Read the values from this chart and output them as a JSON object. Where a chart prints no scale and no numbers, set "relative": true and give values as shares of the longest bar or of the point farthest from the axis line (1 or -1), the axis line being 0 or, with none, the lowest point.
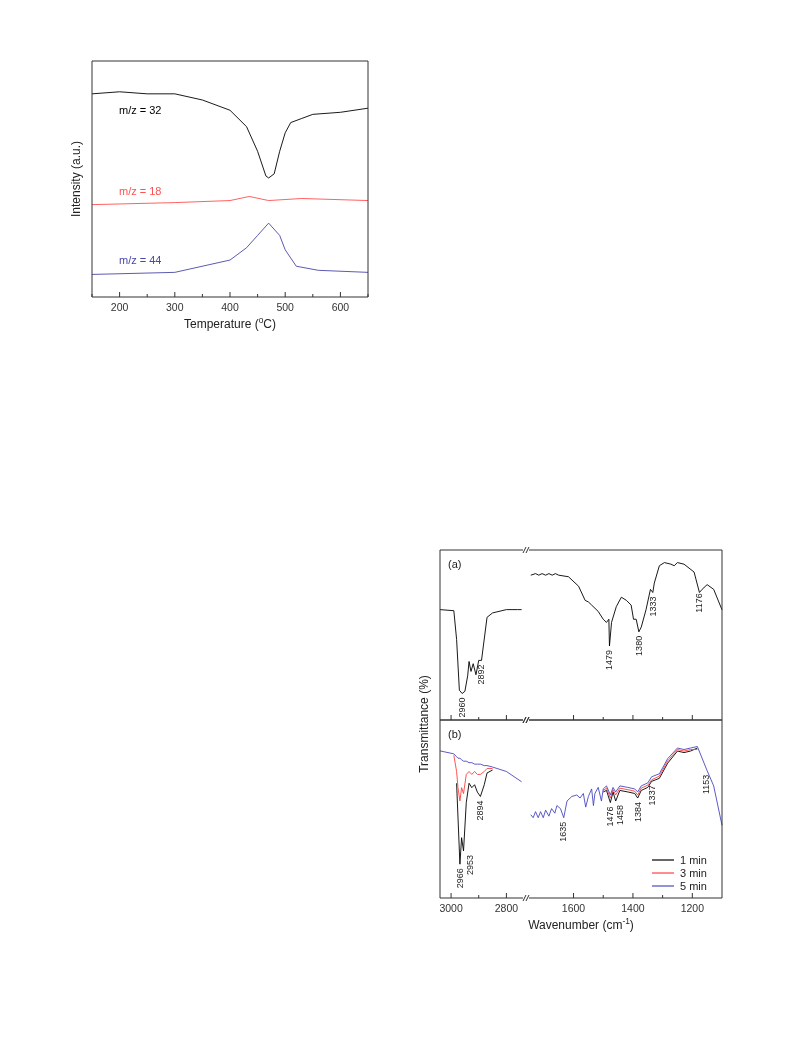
{
  "chart_data": [
    {
      "type": "line",
      "xlabel": "Temperature ($^{o}$C)",
      "ylabel": "Intensity (a.u.)",
      "relative": true,
      "xlim": [
        150,
        650
      ],
      "xticks": [
        {
          "value": 150,
          "label": null
        },
        200,
        {
          "value": 250,
          "label": null
        },
        300,
        {
          "value": 350,
          "label": null
        },
        400,
        {
          "value": 450,
          "label": null
        },
        500,
        {
          "value": 550,
          "label": null
        },
        600,
        {
          "value": 650,
          "label": null
        }
      ],
      "x": [
        150,
        200,
        250,
        300,
        350,
        400,
        430,
        450,
        465,
        470,
        480,
        490,
        500,
        510,
        530,
        550,
        600,
        650
      ],
      "series": [
        {
          "name": "m/z = 32",
          "color": "#000000",
          "values": [
            0.99,
            1.0,
            0.99,
            0.99,
            0.96,
            0.91,
            0.83,
            0.71,
            0.59,
            0.58,
            0.6,
            0.71,
            0.8,
            0.85,
            0.87,
            0.89,
            0.9,
            0.92
          ]
        },
        {
          "name": "m/z = 18",
          "color": "#ff5050",
          "x": [
            150,
            300,
            400,
            435,
            470,
            530,
            650
          ],
          "values": [
            0.45,
            0.46,
            0.47,
            0.49,
            0.47,
            0.48,
            0.47
          ]
        },
        {
          "name": "m/z = 44",
          "color": "#4848a8",
          "x": [
            150,
            300,
            400,
            430,
            450,
            470,
            490,
            500,
            520,
            560,
            650
          ],
          "values": [
            0.11,
            0.12,
            0.18,
            0.24,
            0.3,
            0.36,
            0.3,
            0.23,
            0.15,
            0.13,
            0.12
          ]
        }
      ]
    },
    {
      "type": "line",
      "relative": true,
      "tick_labels": false,
      "ylabel": "Transmittance (%)",
      "annotations": [
        "(a)",
        {
          "text": "2960",
          "x": 2960,
          "y": 0.24
        },
        {
          "text": "2892",
          "x": 2892,
          "y": 0.54
        }
      ],
      "xlim": [
        3040,
        2740
      ],
      "xticks": [
        3000,
        {
          "value": 2900,
          "label": null
        },
        2800
      ],
      "x": [
        3040,
        2990,
        2980,
        2970,
        2960,
        2950,
        2940,
        2935,
        2928,
        2920,
        2910,
        2900,
        2890,
        2870,
        2850,
        2800,
        2760,
        2745
      ],
      "series": [
        {
          "color": "#000000",
          "values": [
            1.0,
            0.99,
            0.73,
            0.27,
            0.24,
            0.26,
            0.4,
            0.53,
            0.44,
            0.51,
            0.41,
            0.54,
            0.54,
            0.93,
            0.97,
            1.0,
            1.0,
            1.0
          ]
        }
      ]
    },
    {
      "type": "line",
      "relative": true,
      "tick_labels": false,
      "annotations": [
        {
          "text": "1479",
          "x": 1479,
          "y": 0.47
        },
        {
          "text": "1380",
          "x": 1380,
          "y": 0.56
        },
        {
          "text": "1333",
          "x": 1333,
          "y": 0.81
        },
        {
          "text": "1176",
          "x": 1176,
          "y": 0.83
        }
      ],
      "xlim": [
        1750,
        1100
      ],
      "xticks": [
        1600,
        {
          "value": 1500,
          "label": null
        },
        1400,
        {
          "value": 1300,
          "label": null
        },
        1200
      ],
      "x": [
        1744,
        1728,
        1717,
        1706,
        1694,
        1683,
        1672,
        1661,
        1650,
        1617,
        1583,
        1561,
        1550,
        1539,
        1517,
        1500,
        1489,
        1481,
        1479,
        1472,
        1456,
        1439,
        1422,
        1406,
        1398,
        1389,
        1380,
        1372,
        1356,
        1341,
        1333,
        1328,
        1311,
        1294,
        1272,
        1261,
        1250,
        1228,
        1194,
        1176,
        1167,
        1150,
        1128,
        1100
      ],
      "series": [
        {
          "color": "#000000",
          "values": [
            0.92,
            0.93,
            0.92,
            0.93,
            0.92,
            0.93,
            0.92,
            0.93,
            0.92,
            0.91,
            0.85,
            0.76,
            0.75,
            0.73,
            0.69,
            0.64,
            0.62,
            0.64,
            0.47,
            0.62,
            0.72,
            0.78,
            0.76,
            0.73,
            0.64,
            0.64,
            0.56,
            0.59,
            0.7,
            0.83,
            0.81,
            0.87,
            0.98,
            1.0,
            0.99,
            0.98,
            1.0,
            0.99,
            0.94,
            0.81,
            0.83,
            0.86,
            0.83,
            0.7
          ]
        }
      ]
    },
    {
      "type": "line",
      "relative": true,
      "annotations": [
        "(b)",
        {
          "text": "2966",
          "x": 2966,
          "y": 0.23
        },
        {
          "text": "2953",
          "x": 2953,
          "y": 0.32
        },
        {
          "text": "2894",
          "x": 2894,
          "y": 0.69
        }
      ],
      "xlim": [
        3040,
        2740
      ],
      "xticks": [
        3000,
        {
          "value": 2900,
          "label": null
        },
        2800
      ],
      "x": [
        3040,
        2990,
        2980,
        2975,
        2968,
        2962,
        2955,
        2945,
        2935,
        2925,
        2915,
        2905,
        2894,
        2880,
        2870,
        2850,
        2800,
        2745
      ],
      "series": [
        {
          "color": "#000000",
          "values": [
            null,
            null,
            0.78,
            0.55,
            0.23,
            0.41,
            0.32,
            0.65,
            0.78,
            0.75,
            0.77,
            0.72,
            0.69,
            0.77,
            0.85,
            0.87,
            null,
            null
          ]
        },
        {
          "color": "#ff4040",
          "values": [
            null,
            0.97,
            0.86,
            0.75,
            0.66,
            0.75,
            0.71,
            0.84,
            0.86,
            0.84,
            0.86,
            0.84,
            0.84,
            0.86,
            0.88,
            0.88,
            null,
            null
          ]
        },
        {
          "color": "#4848c0",
          "values": [
            1.0,
            0.98,
            0.96,
            0.95,
            0.95,
            0.94,
            0.93,
            0.93,
            0.92,
            0.92,
            0.91,
            0.91,
            0.91,
            0.9,
            0.9,
            0.89,
            0.86,
            0.79
          ]
        }
      ]
    },
    {
      "type": "line",
      "relative": true,
      "legend": "bottom right",
      "xlabel": "Wavenumber (cm$^{-1}$)",
      "annotations": [
        {
          "text": "1635",
          "x": 1635,
          "y": 0.53
        },
        {
          "text": "1476",
          "x": 1476,
          "y": 0.63
        },
        {
          "text": "1458",
          "x": 1458,
          "y": 0.64
        },
        {
          "text": "1384",
          "x": 1384,
          "y": 0.66
        },
        {
          "text": "1337",
          "x": 1337,
          "y": 0.77
        },
        {
          "text": "1153",
          "x": 1153,
          "y": 0.84
        }
      ],
      "xlim": [
        1750,
        1100
      ],
      "xticks": [
        1600,
        {
          "value": 1500,
          "label": null
        },
        1400,
        {
          "value": 1300,
          "label": null
        },
        1200
      ],
      "x": [
        1744,
        1736,
        1728,
        1719,
        1711,
        1702,
        1694,
        1683,
        1674,
        1663,
        1656,
        1644,
        1633,
        1622,
        1606,
        1589,
        1578,
        1567,
        1559,
        1550,
        1539,
        1533,
        1528,
        1517,
        1506,
        1500,
        1489,
        1476,
        1467,
        1458,
        1444,
        1417,
        1394,
        1384,
        1372,
        1350,
        1337,
        1311,
        1283,
        1250,
        1228,
        1206,
        1183,
        1150,
        1128,
        1100
      ],
      "series": [
        {
          "name": "1 min",
          "color": "#000000",
          "values": [
            null,
            null,
            null,
            null,
            null,
            null,
            null,
            null,
            null,
            null,
            null,
            null,
            null,
            null,
            null,
            null,
            null,
            null,
            null,
            null,
            null,
            null,
            null,
            null,
            null,
            0.7,
            0.71,
            0.63,
            0.7,
            0.64,
            0.71,
            0.7,
            0.69,
            0.66,
            0.71,
            0.73,
            0.77,
            0.79,
            0.89,
            0.97,
            0.96,
            0.97,
            0.99,
            null,
            null,
            null
          ]
        },
        {
          "name": "3 min",
          "color": "#ff4040",
          "values": [
            null,
            null,
            null,
            null,
            null,
            null,
            null,
            null,
            null,
            null,
            null,
            null,
            null,
            null,
            null,
            null,
            null,
            null,
            null,
            null,
            null,
            null,
            null,
            null,
            null,
            0.71,
            0.725,
            0.66,
            0.715,
            0.68,
            0.725,
            0.715,
            0.705,
            0.68,
            0.725,
            0.745,
            0.78,
            0.805,
            0.905,
            0.98,
            0.97,
            0.98,
            0.98,
            null,
            null,
            null
          ]
        },
        {
          "name": "5 min",
          "color": "#4848c0",
          "values": [
            0.55,
            0.53,
            0.57,
            0.53,
            0.57,
            0.53,
            0.58,
            0.54,
            0.59,
            0.56,
            0.61,
            0.59,
            0.53,
            0.64,
            0.67,
            0.68,
            0.66,
            0.69,
            0.6,
            0.67,
            0.72,
            0.61,
            0.69,
            0.73,
            0.64,
            0.72,
            0.74,
            0.68,
            0.73,
            0.7,
            0.74,
            0.73,
            0.72,
            0.7,
            0.74,
            0.76,
            0.8,
            0.82,
            0.92,
            0.99,
            0.98,
            0.99,
            1.0,
            0.84,
            0.74,
            0.48
          ]
        }
      ]
    }
  ]
}
